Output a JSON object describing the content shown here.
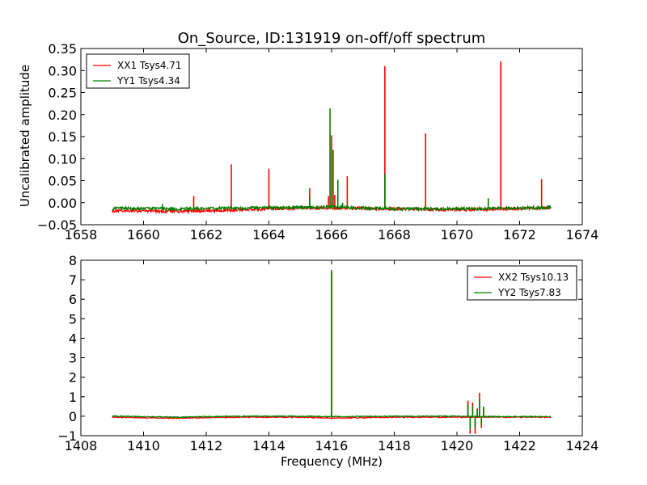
{
  "chart_data": [
    {
      "type": "line",
      "title": "On_Source, ID:131919 on-off/off spectrum",
      "xlabel": "",
      "ylabel": "Uncalibrated amplitude",
      "xlim": [
        1658,
        1674
      ],
      "ylim": [
        -0.05,
        0.35
      ],
      "xticks": [
        "1658",
        "1660",
        "1662",
        "1664",
        "1666",
        "1668",
        "1670",
        "1672",
        "1674"
      ],
      "yticks": [
        "−0.05",
        "0.00",
        "0.05",
        "0.10",
        "0.15",
        "0.20",
        "0.25",
        "0.30",
        "0.35"
      ],
      "legend_position": "top-left",
      "grid": false,
      "x_range": [
        1659,
        1673
      ],
      "series": [
        {
          "name": "XX1 Tsys4.71",
          "color": "#ff0000",
          "baseline": [
            [
              1659,
              -0.018
            ],
            [
              1661,
              -0.02
            ],
            [
              1663,
              -0.016
            ],
            [
              1665,
              -0.012
            ],
            [
              1666,
              -0.012
            ],
            [
              1668,
              -0.014
            ],
            [
              1670,
              -0.016
            ],
            [
              1673,
              -0.012
            ]
          ],
          "peaks": [
            [
              1661.6,
              0.015
            ],
            [
              1662.8,
              0.087
            ],
            [
              1664.0,
              0.077
            ],
            [
              1665.3,
              0.033
            ],
            [
              1665.9,
              0.015
            ],
            [
              1666.0,
              0.153
            ],
            [
              1666.1,
              0.018
            ],
            [
              1666.5,
              0.06
            ],
            [
              1667.7,
              0.31
            ],
            [
              1669.0,
              0.157
            ],
            [
              1671.4,
              0.321
            ],
            [
              1672.7,
              0.054
            ]
          ]
        },
        {
          "name": "YY1 Tsys4.34",
          "color": "#008000",
          "baseline": [
            [
              1659,
              -0.013
            ],
            [
              1661,
              -0.014
            ],
            [
              1663,
              -0.012
            ],
            [
              1665,
              -0.011
            ],
            [
              1666,
              -0.01
            ],
            [
              1668,
              -0.014
            ],
            [
              1670,
              -0.014
            ],
            [
              1673,
              -0.011
            ]
          ],
          "peaks": [
            [
              1660.6,
              -0.003
            ],
            [
              1665.3,
              0.015
            ],
            [
              1665.95,
              0.214
            ],
            [
              1666.05,
              0.12
            ],
            [
              1666.2,
              0.052
            ],
            [
              1666.35,
              0.0
            ],
            [
              1667.7,
              0.065
            ],
            [
              1671.0,
              0.01
            ]
          ]
        }
      ]
    },
    {
      "type": "line",
      "title": "",
      "xlabel": "Frequency (MHz)",
      "ylabel": "",
      "xlim": [
        1408,
        1424
      ],
      "ylim": [
        -1,
        8
      ],
      "xticks": [
        "1408",
        "1410",
        "1412",
        "1414",
        "1416",
        "1418",
        "1420",
        "1422",
        "1424"
      ],
      "yticks": [
        "−1",
        "0",
        "1",
        "2",
        "3",
        "4",
        "5",
        "6",
        "7",
        "8"
      ],
      "legend_position": "top-right",
      "grid": false,
      "x_range": [
        1409,
        1423
      ],
      "series": [
        {
          "name": "XX2 Tsys10.13",
          "color": "#ff0000",
          "baseline": [
            [
              1409,
              -0.05
            ],
            [
              1411,
              -0.1
            ],
            [
              1413,
              -0.05
            ],
            [
              1415,
              -0.05
            ],
            [
              1416,
              -0.1
            ],
            [
              1418,
              -0.05
            ],
            [
              1420,
              -0.05
            ],
            [
              1421,
              -0.05
            ],
            [
              1423,
              -0.05
            ]
          ],
          "peaks": [
            [
              1416.0,
              7.4
            ],
            [
              1420.35,
              0.8
            ],
            [
              1420.42,
              -0.9
            ],
            [
              1420.5,
              0.7
            ],
            [
              1420.58,
              -0.9
            ],
            [
              1420.65,
              0.4
            ],
            [
              1420.72,
              1.2
            ],
            [
              1420.78,
              -0.6
            ],
            [
              1420.85,
              0.4
            ]
          ]
        },
        {
          "name": "YY2 Tsys7.83",
          "color": "#008000",
          "baseline": [
            [
              1409,
              0.0
            ],
            [
              1411,
              -0.05
            ],
            [
              1413,
              0.0
            ],
            [
              1415,
              0.0
            ],
            [
              1416,
              -0.02
            ],
            [
              1418,
              0.0
            ],
            [
              1420,
              0.0
            ],
            [
              1421,
              -0.02
            ],
            [
              1423,
              -0.02
            ]
          ],
          "peaks": [
            [
              1409.05,
              0.05
            ],
            [
              1416.0,
              7.5
            ],
            [
              1420.35,
              0.6
            ],
            [
              1420.42,
              -0.7
            ],
            [
              1420.5,
              0.5
            ],
            [
              1420.58,
              -0.6
            ],
            [
              1420.65,
              0.3
            ],
            [
              1420.72,
              0.9
            ],
            [
              1420.78,
              -0.4
            ],
            [
              1420.85,
              0.5
            ]
          ]
        }
      ]
    }
  ]
}
